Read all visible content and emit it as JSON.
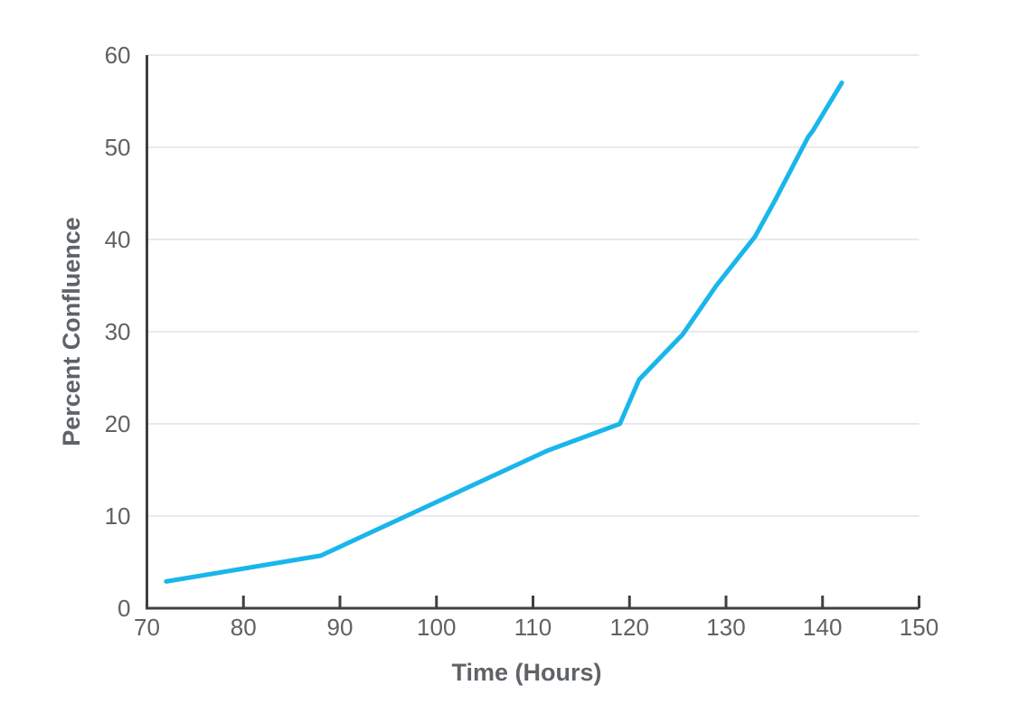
{
  "chart_data": {
    "type": "line",
    "title": "",
    "xlabel": "Time (Hours)",
    "ylabel": "Percent Confluence",
    "xlim": [
      70,
      150
    ],
    "ylim": [
      0,
      60
    ],
    "xticks": [
      70,
      80,
      90,
      100,
      110,
      120,
      130,
      140,
      150
    ],
    "yticks": [
      0,
      10,
      20,
      30,
      40,
      50,
      60
    ],
    "grid": "horizontal-only",
    "legend_position": "none",
    "series": [
      {
        "color": "#19b6eb",
        "points": [
          [
            72,
            2.9
          ],
          [
            88,
            5.7
          ],
          [
            111.5,
            17.1
          ],
          [
            119,
            20.0
          ],
          [
            121,
            24.8
          ],
          [
            125.5,
            29.7
          ],
          [
            129,
            35.0
          ],
          [
            133,
            40.3
          ],
          [
            135,
            44.1
          ],
          [
            138.5,
            51.1
          ],
          [
            139,
            51.8
          ],
          [
            142,
            57.0
          ]
        ]
      }
    ]
  },
  "colors": {
    "background": "#ffffff",
    "line": "#19b6eb",
    "axis": "#404040",
    "grid": "#e9e9e9",
    "tick_label": "#616161",
    "axis_title": "#5f6368"
  }
}
